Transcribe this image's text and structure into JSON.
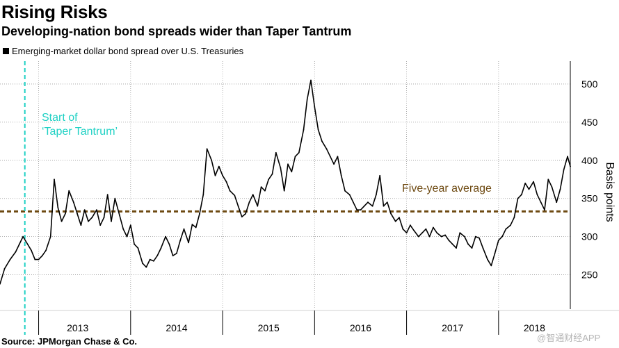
{
  "header": {
    "title": "Rising Risks",
    "subtitle": "Developing-nation bond spreads wider than Taper Tantrum"
  },
  "legend": {
    "label": "Emerging-market dollar bond spread over U.S. Treasuries"
  },
  "source": "Source: JPMorgan Chase & Co.",
  "watermark": "@智通财经APP",
  "chart_data": {
    "type": "line",
    "title": "Rising Risks",
    "subtitle": "Developing-nation bond spreads wider than Taper Tantrum",
    "xlabel": "",
    "ylabel": "Basis points",
    "ylim": [
      205,
      530
    ],
    "xlim": [
      2012.58,
      2018.78
    ],
    "yticks": [
      250,
      300,
      350,
      400,
      450,
      500
    ],
    "xticks": [
      "2013",
      "2014",
      "2015",
      "2016",
      "2017",
      "2018"
    ],
    "grid": true,
    "legend_position": "top-left",
    "series": [
      {
        "name": "Emerging-market dollar bond spread over U.S. Treasuries",
        "color": "#000000",
        "x": [
          2012.58,
          2012.63,
          2012.69,
          2012.75,
          2012.79,
          2012.83,
          2012.88,
          2012.92,
          2012.96,
          2013.0,
          2013.04,
          2013.08,
          2013.13,
          2013.17,
          2013.21,
          2013.25,
          2013.29,
          2013.33,
          2013.38,
          2013.42,
          2013.46,
          2013.5,
          2013.54,
          2013.58,
          2013.63,
          2013.67,
          2013.71,
          2013.75,
          2013.79,
          2013.83,
          2013.88,
          2013.92,
          2013.96,
          2014.0,
          2014.04,
          2014.08,
          2014.13,
          2014.17,
          2014.21,
          2014.25,
          2014.29,
          2014.33,
          2014.38,
          2014.42,
          2014.46,
          2014.5,
          2014.54,
          2014.58,
          2014.63,
          2014.67,
          2014.71,
          2014.75,
          2014.79,
          2014.83,
          2014.88,
          2014.92,
          2014.96,
          2015.0,
          2015.04,
          2015.08,
          2015.13,
          2015.17,
          2015.21,
          2015.25,
          2015.29,
          2015.33,
          2015.38,
          2015.42,
          2015.46,
          2015.5,
          2015.54,
          2015.58,
          2015.63,
          2015.67,
          2015.71,
          2015.75,
          2015.79,
          2015.83,
          2015.88,
          2015.92,
          2015.96,
          2016.0,
          2016.04,
          2016.08,
          2016.13,
          2016.17,
          2016.21,
          2016.25,
          2016.29,
          2016.33,
          2016.38,
          2016.42,
          2016.46,
          2016.5,
          2016.54,
          2016.58,
          2016.63,
          2016.67,
          2016.71,
          2016.75,
          2016.79,
          2016.83,
          2016.88,
          2016.92,
          2016.96,
          2017.0,
          2017.04,
          2017.08,
          2017.13,
          2017.17,
          2017.21,
          2017.25,
          2017.29,
          2017.33,
          2017.38,
          2017.42,
          2017.46,
          2017.5,
          2017.54,
          2017.58,
          2017.63,
          2017.67,
          2017.71,
          2017.75,
          2017.79,
          2017.83,
          2017.88,
          2017.92,
          2017.96,
          2018.0,
          2018.04,
          2018.08,
          2018.13,
          2018.17,
          2018.21,
          2018.25,
          2018.29,
          2018.33,
          2018.38,
          2018.42,
          2018.46,
          2018.5,
          2018.54,
          2018.58,
          2018.63,
          2018.67,
          2018.71,
          2018.75,
          2018.78
        ],
        "values": [
          238,
          258,
          270,
          280,
          290,
          300,
          290,
          282,
          270,
          270,
          275,
          282,
          300,
          375,
          338,
          320,
          330,
          360,
          345,
          330,
          315,
          335,
          320,
          325,
          335,
          315,
          325,
          355,
          320,
          350,
          328,
          310,
          300,
          315,
          290,
          285,
          265,
          260,
          270,
          268,
          275,
          285,
          300,
          290,
          275,
          278,
          295,
          310,
          292,
          316,
          312,
          330,
          355,
          415,
          400,
          380,
          392,
          380,
          372,
          360,
          354,
          340,
          326,
          330,
          345,
          355,
          340,
          365,
          360,
          375,
          382,
          410,
          390,
          360,
          395,
          385,
          405,
          410,
          440,
          480,
          505,
          470,
          440,
          425,
          415,
          405,
          395,
          405,
          380,
          360,
          355,
          345,
          335,
          335,
          340,
          345,
          340,
          355,
          380,
          340,
          345,
          330,
          320,
          325,
          310,
          305,
          315,
          308,
          300,
          305,
          310,
          300,
          312,
          305,
          300,
          302,
          295,
          290,
          285,
          305,
          300,
          290,
          285,
          300,
          298,
          285,
          270,
          262,
          278,
          295,
          300,
          310,
          315,
          325,
          350,
          355,
          370,
          362,
          372,
          355,
          345,
          335,
          375,
          365,
          345,
          362,
          388,
          405,
          392
        ]
      },
      {
        "name": "Five-year average",
        "color": "#6e4a12",
        "x": [
          2012.58,
          2018.78
        ],
        "values": [
          333,
          333
        ]
      }
    ],
    "annotations": [
      {
        "text_line1": "Start of",
        "text_line2": "‘Taper Tantrum’",
        "x": 2012.85,
        "color": "#1fd1c4"
      },
      {
        "text": "Five-year average",
        "color": "#6e4a12"
      }
    ]
  }
}
